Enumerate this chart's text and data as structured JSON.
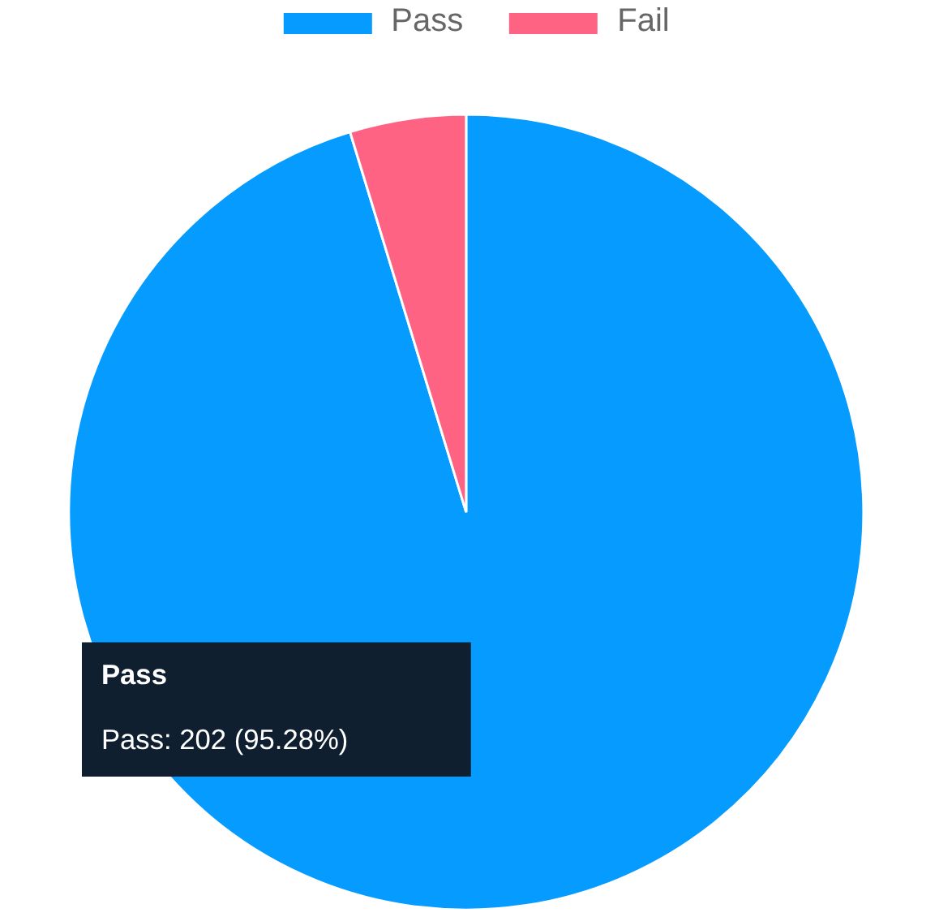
{
  "chart_data": {
    "type": "pie",
    "categories": [
      "Pass",
      "Fail"
    ],
    "values": [
      95.28,
      4.72
    ],
    "colors": [
      "#059bff",
      "#ff6384"
    ],
    "legend": "top",
    "annotations": [
      "Pass",
      "Pass: 202 (95.28%)"
    ]
  }
}
